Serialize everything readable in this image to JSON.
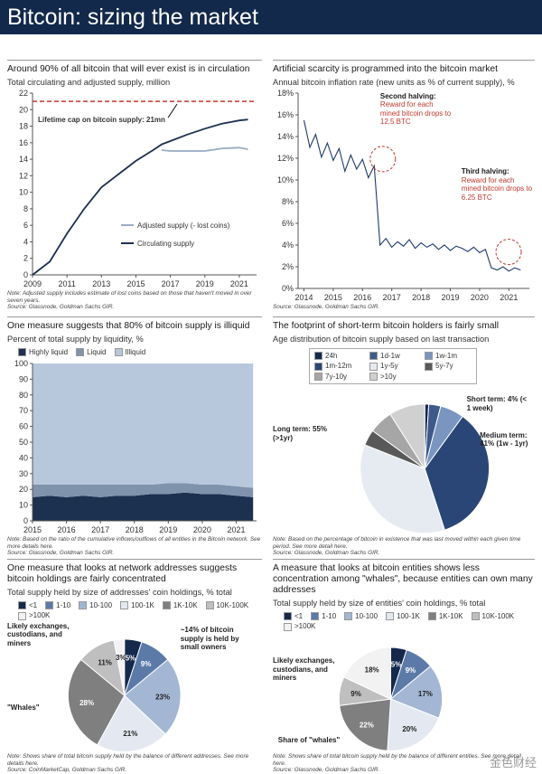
{
  "header": {
    "title": "Bitcoin: sizing the market"
  },
  "watermark": "金色财经",
  "chart_data": [
    {
      "type": "line",
      "title": "Around 90% of all bitcoin that will ever exist is in circulation",
      "subtitle": "Total circulating and adjusted supply, million",
      "x": [
        2009,
        2010,
        2011,
        2012,
        2013,
        2014,
        2015,
        2016,
        2016.5,
        2017,
        2018,
        2019,
        2020,
        2021,
        2021.5
      ],
      "series": [
        {
          "name": "Adjusted supply (- lost coins)",
          "color": "#9aacc4",
          "values": [
            null,
            null,
            null,
            null,
            null,
            null,
            null,
            null,
            15.1,
            15.0,
            15.0,
            15.0,
            15.3,
            15.4,
            15.2
          ]
        },
        {
          "name": "Circulating supply",
          "color": "#1c3050",
          "values": [
            0,
            1.6,
            5,
            8,
            10.6,
            12.2,
            13.8,
            15.1,
            15.8,
            16.2,
            17.0,
            17.7,
            18.3,
            18.7,
            18.8
          ]
        }
      ],
      "cap": {
        "value": 21,
        "label": "Lifetime cap on bitcoin supply: 21mn",
        "color": "#c0392b"
      },
      "legend": "lower right",
      "xlim": [
        2009,
        2022
      ],
      "xticks": [
        2009,
        2011,
        2013,
        2015,
        2017,
        2019,
        2021
      ],
      "ylim": [
        0,
        22
      ],
      "yticks": [
        0,
        2,
        4,
        6,
        8,
        10,
        12,
        14,
        16,
        18,
        20,
        22
      ],
      "notes": [
        "Note: Adjusted supply includes estimate of lost coins based on those that haven't moved in over seven years.",
        "Source: Glassnode, Goldman Sachs GIR."
      ]
    },
    {
      "type": "line",
      "title": "Artificial scarcity is programmed into the bitcoin market",
      "subtitle": "Annual bitcoin inflation rate (new units as % of current supply), %",
      "x": [
        2014.0,
        2014.2,
        2014.4,
        2014.6,
        2014.8,
        2015.0,
        2015.2,
        2015.4,
        2015.6,
        2015.8,
        2016.0,
        2016.2,
        2016.4,
        2016.6,
        2016.8,
        2017.0,
        2017.2,
        2017.4,
        2017.6,
        2017.8,
        2018.0,
        2018.2,
        2018.4,
        2018.6,
        2018.8,
        2019.0,
        2019.2,
        2019.4,
        2019.6,
        2019.8,
        2020.0,
        2020.2,
        2020.4,
        2020.6,
        2020.8,
        2021.0,
        2021.2,
        2021.4
      ],
      "values": [
        15.5,
        13.0,
        14.2,
        12.1,
        13.4,
        11.8,
        12.9,
        10.8,
        12.3,
        11.0,
        11.9,
        10.2,
        11.3,
        4.0,
        4.6,
        3.8,
        4.3,
        3.9,
        4.5,
        3.7,
        4.2,
        3.8,
        4.1,
        3.6,
        4.0,
        3.5,
        3.9,
        3.7,
        3.4,
        3.8,
        3.3,
        3.6,
        1.9,
        1.7,
        2.0,
        1.6,
        1.9,
        1.7
      ],
      "color": "#1f3a70",
      "annotations": [
        {
          "title": "Second halving:",
          "text": "Reward for each mined bitcoin drops to 12.5 BTC"
        },
        {
          "title": "Third halving:",
          "text": "Reward for each mined bitcoin drops to 6.25 BTC"
        }
      ],
      "xlim": [
        2013.8,
        2021.7
      ],
      "xticks": [
        2014,
        2015,
        2016,
        2017,
        2018,
        2019,
        2020,
        2021
      ],
      "ylim": [
        0,
        18
      ],
      "yticks": [
        {
          "value": 0,
          "label": "0%"
        },
        {
          "value": 2,
          "label": "2%"
        },
        {
          "value": 4,
          "label": "4%"
        },
        {
          "value": 6,
          "label": "6%"
        },
        {
          "value": 8,
          "label": "8%"
        },
        {
          "value": 10,
          "label": "10%"
        },
        {
          "value": 12,
          "label": "12%"
        },
        {
          "value": 14,
          "label": "14%"
        },
        {
          "value": 16,
          "label": "16%"
        },
        {
          "value": 18,
          "label": "18%"
        }
      ],
      "notes": [
        "Source: Glassnode, Goldman Sachs GIR."
      ]
    },
    {
      "type": "area",
      "title": "One measure suggests that 80% of bitcoin supply is illiquid",
      "subtitle": "Percent of total supply by liquidity, %",
      "x": [
        2015,
        2015.5,
        2016,
        2016.5,
        2017,
        2017.5,
        2018,
        2018.5,
        2019,
        2019.5,
        2020,
        2020.5,
        2021,
        2021.5
      ],
      "series": [
        {
          "name": "Highly liquid",
          "color": "#1c3050",
          "values": [
            15,
            16,
            15,
            16,
            15,
            16,
            16,
            17,
            17,
            18,
            17,
            17,
            16,
            15
          ]
        },
        {
          "name": "Liquid",
          "color": "#7f93ad",
          "values": [
            8,
            7,
            8,
            7,
            8,
            7,
            7,
            6,
            7,
            6,
            6,
            6,
            6,
            6
          ]
        },
        {
          "name": "Illiquid",
          "color": "#b8c8dc",
          "values": [
            77,
            77,
            77,
            77,
            77,
            77,
            77,
            77,
            76,
            76,
            77,
            77,
            78,
            79
          ]
        }
      ],
      "legend": "top",
      "xlim": [
        2015,
        2021.6
      ],
      "xticks": [
        2015,
        2016,
        2017,
        2018,
        2019,
        2020,
        2021
      ],
      "ylim": [
        0,
        100
      ],
      "yticks": [
        0,
        10,
        20,
        30,
        40,
        50,
        60,
        70,
        80,
        90,
        100
      ],
      "notes": [
        "Note: Based on the ratio of the cumulative inflows/outflows of all entities in the Bitcoin network. See more details here.",
        "Source: Glassnode, Goldman Sachs GIR."
      ]
    },
    {
      "type": "pie",
      "title": "The footprint of short-term bitcoin holders is fairly small",
      "subtitle": "Age distribution of bitcoin supply based on last transaction",
      "categories": [
        "24h",
        "1d-1w",
        "1w-1m",
        "1m-12m",
        "1y-5y",
        "5y-7y",
        "7y-10y",
        ">10y"
      ],
      "values": [
        1,
        3,
        6,
        35,
        36,
        4,
        6,
        9
      ],
      "colors": [
        "#15294d",
        "#3d5a8a",
        "#7a95bf",
        "#2a4677",
        "#e6ebf2",
        "#595959",
        "#a6a6a6",
        "#d0d0d0"
      ],
      "legend": "top",
      "annotations": [
        "Short term: 4% (< 1 week)",
        "Medium term: 41% (1w - 1yr)",
        "Long term: 55% (>1yr)"
      ],
      "notes": [
        "Note: Based on the percentage of bitcoin in existence that was last moved within each given time period. See more detail here.",
        "Source: Glassnode, Goldman Sachs GIR."
      ]
    },
    {
      "type": "pie",
      "title": "One measure that looks at network addresses suggests bitcoin holdings are fairly concentrated",
      "subtitle": "Total supply held by size of addresses' coin holdings, % total",
      "categories": [
        "<1",
        "1-10",
        "10-100",
        "100-1K",
        "1K-10K",
        "10K-100K",
        ">100K"
      ],
      "values": [
        5,
        9,
        23,
        21,
        28,
        11,
        3
      ],
      "value_labels": [
        "5%",
        "9%",
        "23%",
        "21%",
        "28%",
        "11%",
        "3%"
      ],
      "colors": [
        "#15294d",
        "#5b7aa8",
        "#a3b6d4",
        "#e4e9f1",
        "#7f7f7f",
        "#bfbfbf",
        "#f2f2f2"
      ],
      "legend": "top",
      "annotations": [
        "Likely exchanges, custodians, and miners",
        "~14% of bitcoin supply is held by small owners",
        "\"Whales\""
      ],
      "notes": [
        "Note: Shows share of total bitcoin supply held by the balance of different addresses. See more details here.",
        "Source: CoinMarketCap, Goldman Sachs GIR."
      ]
    },
    {
      "type": "pie",
      "title": "A measure that looks at bitcoin entities shows less concentration among \"whales\", because entities can own many addresses",
      "subtitle": "Total supply held by size of entities' coin holdings, % total",
      "categories": [
        "<1",
        "1-10",
        "10-100",
        "100-1K",
        "1K-10K",
        "10K-100K",
        ">100K"
      ],
      "values": [
        5,
        9,
        17,
        20,
        22,
        9,
        18
      ],
      "value_labels": [
        "5%",
        "9%",
        "17%",
        "20%",
        "22%",
        "9%",
        "18%"
      ],
      "colors": [
        "#15294d",
        "#5b7aa8",
        "#a3b6d4",
        "#e4e9f1",
        "#7f7f7f",
        "#bfbfbf",
        "#f2f2f2"
      ],
      "legend": "top",
      "annotations": [
        "Likely exchanges, custodians, and miners",
        "Share of \"whales\""
      ],
      "notes": [
        "Note: Shows share of total bitcoin supply held by the balance of different entities. See more detail here.",
        "Source: Glassnode, Goldman Sachs GIR."
      ]
    }
  ]
}
